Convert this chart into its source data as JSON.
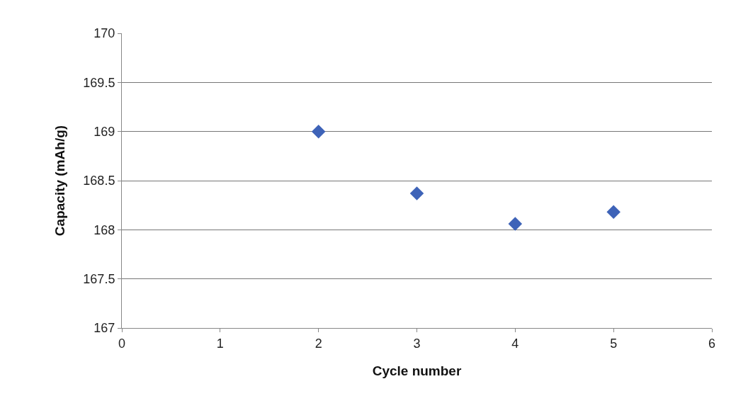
{
  "chart_data": {
    "type": "scatter",
    "xlabel": "Cycle number",
    "ylabel": "Capacity (mAh/g)",
    "x": [
      2,
      3,
      4,
      5
    ],
    "series": [
      {
        "color": "#3e63b8",
        "values": [
          169.0,
          168.37,
          168.06,
          168.18
        ]
      }
    ],
    "xlim": [
      0,
      6
    ],
    "xticks": [
      0,
      1,
      2,
      3,
      4,
      5,
      6
    ],
    "ylim": [
      167,
      170
    ],
    "yticks": [
      167,
      167.5,
      168,
      168.5,
      169,
      169.5,
      170
    ],
    "grid": "y",
    "marker": "diamond"
  }
}
